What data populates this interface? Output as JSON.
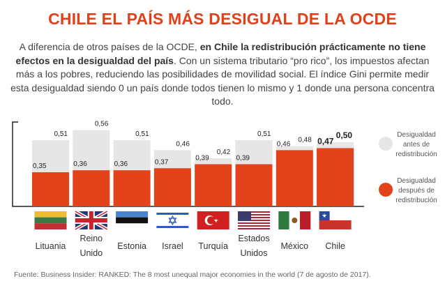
{
  "title": "CHILE EL PAÍS MÁS DESIGUAL DE LA OCDE",
  "intro": {
    "part1": "A diferencia de otros países de la OCDE, ",
    "bold": "en Chile la redistribución prácticamente no tiene efectos en la desigualdad del país",
    "part2": ". Con un sistema tributario “pro rico”, los impuestos afectan más a los pobres, reduciendo las posibilidades de movilidad social. El índice Gini permite medir esta desigualdad siendo 0 un país donde todos tienen lo mismo y 1 donde una persona concentra todo."
  },
  "chart_data": {
    "type": "bar",
    "title": "CHILE EL PAÍS MÁS DESIGUAL DE LA OCDE",
    "categories": [
      "Lituania",
      "Reino Unido",
      "Estonia",
      "Israel",
      "Turquía",
      "Estados Unidos",
      "México",
      "Chile"
    ],
    "category_lines": [
      [
        "Lituania"
      ],
      [
        "Reino",
        "Unido"
      ],
      [
        "Estonia"
      ],
      [
        "Israel"
      ],
      [
        "Turquía"
      ],
      [
        "Estados",
        "Unidos"
      ],
      [
        "México"
      ],
      [
        "Chile"
      ]
    ],
    "series": [
      {
        "name": "Desigualdad antes de redistribución",
        "color": "#e6e6e6",
        "values": [
          0.51,
          0.56,
          0.51,
          0.46,
          0.42,
          0.51,
          0.48,
          0.5
        ],
        "labels": [
          "0,51",
          "0,56",
          "0,51",
          "0,46",
          "0,42",
          "0,51",
          "0,48",
          "0,50"
        ]
      },
      {
        "name": "Desigualdad después de redistribución",
        "color": "#e2431a",
        "values": [
          0.35,
          0.36,
          0.36,
          0.37,
          0.39,
          0.39,
          0.46,
          0.47
        ],
        "labels": [
          "0,35",
          "0,36",
          "0,36",
          "0,37",
          "0,39",
          "0,39",
          "0,46",
          "0,47"
        ]
      }
    ],
    "legend_lines": [
      [
        "Desigualdad",
        "antes de",
        "redistribución"
      ],
      [
        "Desigualdad",
        "después de",
        "redistribución"
      ]
    ],
    "highlight": "Chile",
    "ylim": [
      0.18,
      0.6
    ],
    "legend": "right",
    "grid": false
  },
  "flags": [
    "lithuania-flag",
    "uk-flag",
    "estonia-flag",
    "israel-flag",
    "turkey-flag",
    "usa-flag",
    "mexico-flag",
    "chile-flag"
  ],
  "source": "Fuente: Business Insider: RANKED: The 8 most unequal major economies in the world (7 de agosto de 2017)."
}
